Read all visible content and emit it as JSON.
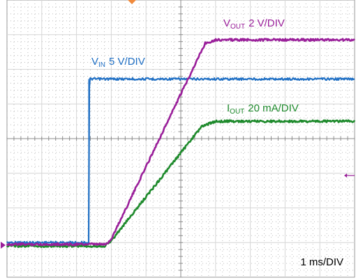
{
  "chart_data": {
    "type": "line",
    "title": "",
    "xlabel": "",
    "ylabel": "",
    "grid": true,
    "divisions": {
      "x": 10,
      "y": 8
    },
    "xlim_div": [
      0,
      10
    ],
    "ylim_div": [
      -4,
      4
    ],
    "timebase_label": "1 ms/DIV",
    "series": [
      {
        "name_main": "V",
        "name_sub": "IN",
        "scale": "5 V/DIV",
        "color": "#1f6fc4",
        "x_div": [
          0,
          2.35,
          2.36,
          2.37,
          10
        ],
        "y_div": [
          -3.0,
          -3.0,
          -3.0,
          1.72,
          1.72
        ]
      },
      {
        "name_main": "V",
        "name_sub": "OUT",
        "scale": "2 V/DIV",
        "color": "#9a1f9a",
        "x_div": [
          0,
          2.85,
          3.0,
          5.7,
          6.0,
          10
        ],
        "y_div": [
          -3.05,
          -3.05,
          -2.9,
          2.75,
          2.85,
          2.85
        ]
      },
      {
        "name_main": "I",
        "name_sub": "OUT",
        "scale": "20 mA/DIV",
        "color": "#1e8a2c",
        "x_div": [
          0,
          2.8,
          3.0,
          5.6,
          6.0,
          10
        ],
        "y_div": [
          -3.1,
          -3.1,
          -2.95,
          0.35,
          0.5,
          0.5
        ]
      }
    ]
  },
  "markers": {
    "trigger_color": "#f08a3c",
    "ground_color": "#9a1f9a",
    "level_color": "#9a1f9a"
  }
}
